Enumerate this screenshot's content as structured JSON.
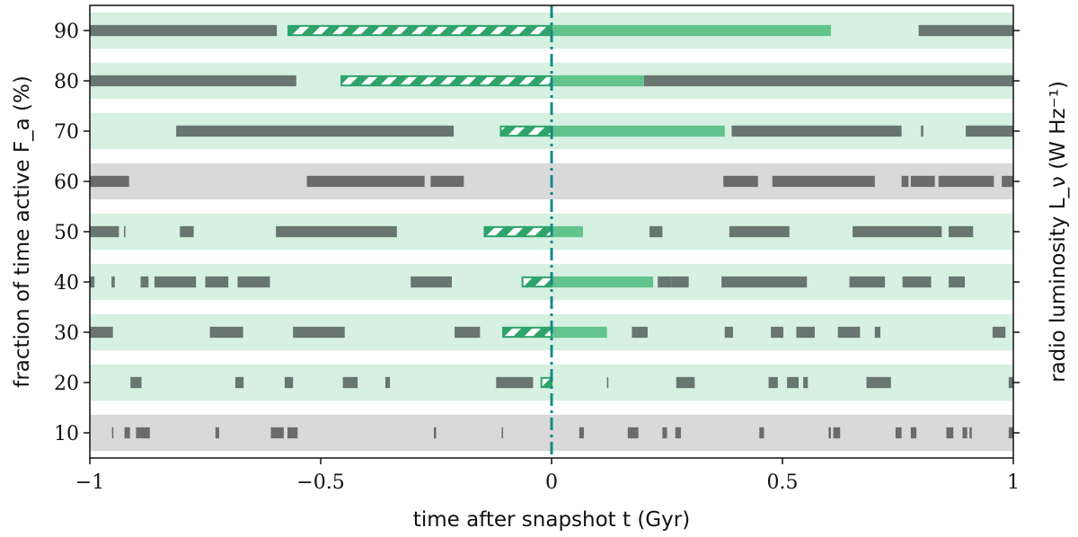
{
  "chart_data": {
    "type": "bar",
    "xlabel": "time after snapshot t (Gyr)",
    "ylabel": "fraction of time active F_a (%)",
    "ylabel_right": "radio luminosity L_ν (W Hz⁻¹)",
    "xlim": [
      -1,
      1
    ],
    "ylim": [
      5,
      95
    ],
    "x_ticks": [
      -1,
      -0.5,
      0,
      0.5,
      1
    ],
    "x_tick_labels": [
      "−1",
      "−0.5",
      "0",
      "0.5",
      "1"
    ],
    "y_ticks": [
      10,
      20,
      30,
      40,
      50,
      60,
      70,
      80,
      90
    ],
    "y_tick_labels": [
      "10",
      "20",
      "30",
      "40",
      "50",
      "60",
      "70",
      "80",
      "90"
    ],
    "snapshot_line_x": 0,
    "colors": {
      "band_active": "#d6f0e1",
      "band_inactive": "#d9d9d9",
      "segment": "#687570",
      "segment_inactive_row": "#6b6b6b",
      "active_now": "#62c48c",
      "hatch": "#2ea36a",
      "snapshot_line": "#148a85"
    },
    "rows": [
      {
        "fa": 90,
        "active_at_snapshot": true,
        "hatch": [
          -0.57,
          0
        ],
        "active_after": [
          0,
          0.605
        ],
        "segments": [
          [
            -1,
            -0.595
          ],
          [
            0.795,
            1
          ]
        ]
      },
      {
        "fa": 80,
        "active_at_snapshot": true,
        "hatch": [
          -0.455,
          0
        ],
        "active_after": [
          0,
          0.2
        ],
        "segments": [
          [
            -1,
            -0.553
          ],
          [
            0.2,
            1
          ]
        ]
      },
      {
        "fa": 70,
        "active_at_snapshot": true,
        "hatch": [
          -0.11,
          0
        ],
        "active_after": [
          0,
          0.375
        ],
        "segments": [
          [
            -0.813,
            -0.212
          ],
          [
            0.39,
            0.758
          ],
          [
            0.8,
            0.805
          ],
          [
            0.897,
            1
          ]
        ]
      },
      {
        "fa": 60,
        "active_at_snapshot": false,
        "hatch": null,
        "active_after": null,
        "segments": [
          [
            -1,
            -0.915
          ],
          [
            -0.53,
            -0.275
          ],
          [
            -0.262,
            -0.19
          ],
          [
            0.372,
            0.447
          ],
          [
            0.478,
            0.7
          ],
          [
            0.758,
            0.773
          ],
          [
            0.778,
            0.83
          ],
          [
            0.838,
            0.958
          ],
          [
            0.975,
            1
          ]
        ]
      },
      {
        "fa": 50,
        "active_at_snapshot": true,
        "hatch": [
          -0.145,
          0
        ],
        "active_after": [
          0,
          0.068
        ],
        "segments": [
          [
            -1,
            -0.937
          ],
          [
            -0.926,
            -0.923
          ],
          [
            -0.805,
            -0.775
          ],
          [
            -0.597,
            -0.335
          ],
          [
            0.212,
            0.24
          ],
          [
            0.385,
            0.515
          ],
          [
            0.652,
            0.845
          ],
          [
            0.86,
            0.913
          ]
        ]
      },
      {
        "fa": 40,
        "active_at_snapshot": true,
        "hatch": [
          -0.063,
          0
        ],
        "active_after": [
          0,
          0.22
        ],
        "segments": [
          [
            -1,
            -0.99
          ],
          [
            -0.953,
            -0.946
          ],
          [
            -0.89,
            -0.873
          ],
          [
            -0.86,
            -0.77
          ],
          [
            -0.75,
            -0.7
          ],
          [
            -0.68,
            -0.61
          ],
          [
            -0.305,
            -0.216
          ],
          [
            0.23,
            0.26
          ],
          [
            0.26,
            0.297
          ],
          [
            0.368,
            0.553
          ],
          [
            0.645,
            0.722
          ],
          [
            0.76,
            0.822
          ],
          [
            0.86,
            0.895
          ]
        ]
      },
      {
        "fa": 30,
        "active_at_snapshot": true,
        "hatch": [
          -0.105,
          0
        ],
        "active_after": [
          0,
          0.12
        ],
        "segments": [
          [
            -1,
            -0.95
          ],
          [
            -0.74,
            -0.668
          ],
          [
            -0.56,
            -0.448
          ],
          [
            -0.21,
            -0.155
          ],
          [
            0.174,
            0.208
          ],
          [
            0.375,
            0.393
          ],
          [
            0.475,
            0.502
          ],
          [
            0.53,
            0.57
          ],
          [
            0.62,
            0.668
          ],
          [
            0.7,
            0.712
          ],
          [
            0.955,
            0.983
          ]
        ]
      },
      {
        "fa": 20,
        "active_at_snapshot": true,
        "hatch": [
          -0.022,
          0
        ],
        "active_after": null,
        "segments": [
          [
            -0.912,
            -0.888
          ],
          [
            -0.685,
            -0.667
          ],
          [
            -0.578,
            -0.56
          ],
          [
            -0.452,
            -0.42
          ],
          [
            -0.36,
            -0.35
          ],
          [
            -0.12,
            -0.04
          ],
          [
            0.12,
            0.123
          ],
          [
            0.27,
            0.31
          ],
          [
            0.47,
            0.49
          ],
          [
            0.51,
            0.535
          ],
          [
            0.545,
            0.555
          ],
          [
            0.682,
            0.735
          ],
          [
            0.99,
            1
          ]
        ]
      },
      {
        "fa": 10,
        "active_at_snapshot": false,
        "hatch": null,
        "active_after": null,
        "segments": [
          [
            -0.952,
            -0.949
          ],
          [
            -0.925,
            -0.913
          ],
          [
            -0.9,
            -0.87
          ],
          [
            -0.728,
            -0.72
          ],
          [
            -0.608,
            -0.58
          ],
          [
            -0.572,
            -0.55
          ],
          [
            -0.255,
            -0.25
          ],
          [
            -0.108,
            -0.105
          ],
          [
            0.06,
            0.07
          ],
          [
            0.165,
            0.188
          ],
          [
            0.24,
            0.25
          ],
          [
            0.268,
            0.28
          ],
          [
            0.45,
            0.46
          ],
          [
            0.6,
            0.605
          ],
          [
            0.61,
            0.625
          ],
          [
            0.745,
            0.758
          ],
          [
            0.778,
            0.79
          ],
          [
            0.855,
            0.87
          ],
          [
            0.89,
            0.9
          ],
          [
            0.905,
            0.91
          ],
          [
            0.99,
            1
          ]
        ]
      }
    ]
  }
}
